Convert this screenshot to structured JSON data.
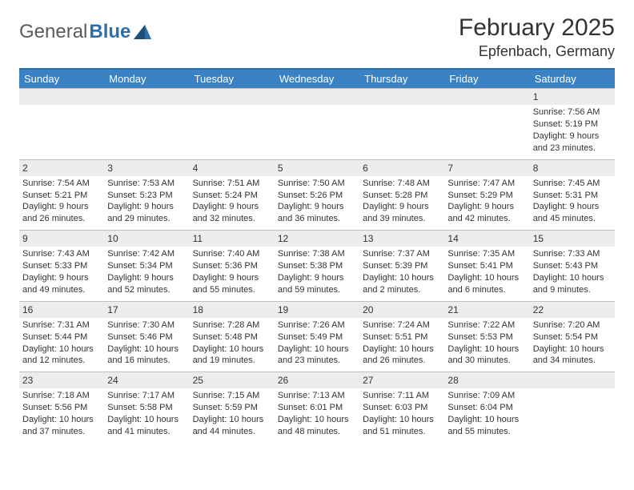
{
  "logo": {
    "text1": "General",
    "text2": "Blue"
  },
  "title": "February 2025",
  "location": "Epfenbach, Germany",
  "colors": {
    "header_bar": "#3a82c4",
    "accent_rule": "#2f6fa7",
    "daynum_bg": "#ededed",
    "text": "#333333",
    "logo_gray": "#5a5a5a",
    "logo_blue": "#2f6fa7"
  },
  "day_names": [
    "Sunday",
    "Monday",
    "Tuesday",
    "Wednesday",
    "Thursday",
    "Friday",
    "Saturday"
  ],
  "weeks": [
    [
      null,
      null,
      null,
      null,
      null,
      null,
      {
        "n": "1",
        "sr": "Sunrise: 7:56 AM",
        "ss": "Sunset: 5:19 PM",
        "d1": "Daylight: 9 hours",
        "d2": "and 23 minutes."
      }
    ],
    [
      {
        "n": "2",
        "sr": "Sunrise: 7:54 AM",
        "ss": "Sunset: 5:21 PM",
        "d1": "Daylight: 9 hours",
        "d2": "and 26 minutes."
      },
      {
        "n": "3",
        "sr": "Sunrise: 7:53 AM",
        "ss": "Sunset: 5:23 PM",
        "d1": "Daylight: 9 hours",
        "d2": "and 29 minutes."
      },
      {
        "n": "4",
        "sr": "Sunrise: 7:51 AM",
        "ss": "Sunset: 5:24 PM",
        "d1": "Daylight: 9 hours",
        "d2": "and 32 minutes."
      },
      {
        "n": "5",
        "sr": "Sunrise: 7:50 AM",
        "ss": "Sunset: 5:26 PM",
        "d1": "Daylight: 9 hours",
        "d2": "and 36 minutes."
      },
      {
        "n": "6",
        "sr": "Sunrise: 7:48 AM",
        "ss": "Sunset: 5:28 PM",
        "d1": "Daylight: 9 hours",
        "d2": "and 39 minutes."
      },
      {
        "n": "7",
        "sr": "Sunrise: 7:47 AM",
        "ss": "Sunset: 5:29 PM",
        "d1": "Daylight: 9 hours",
        "d2": "and 42 minutes."
      },
      {
        "n": "8",
        "sr": "Sunrise: 7:45 AM",
        "ss": "Sunset: 5:31 PM",
        "d1": "Daylight: 9 hours",
        "d2": "and 45 minutes."
      }
    ],
    [
      {
        "n": "9",
        "sr": "Sunrise: 7:43 AM",
        "ss": "Sunset: 5:33 PM",
        "d1": "Daylight: 9 hours",
        "d2": "and 49 minutes."
      },
      {
        "n": "10",
        "sr": "Sunrise: 7:42 AM",
        "ss": "Sunset: 5:34 PM",
        "d1": "Daylight: 9 hours",
        "d2": "and 52 minutes."
      },
      {
        "n": "11",
        "sr": "Sunrise: 7:40 AM",
        "ss": "Sunset: 5:36 PM",
        "d1": "Daylight: 9 hours",
        "d2": "and 55 minutes."
      },
      {
        "n": "12",
        "sr": "Sunrise: 7:38 AM",
        "ss": "Sunset: 5:38 PM",
        "d1": "Daylight: 9 hours",
        "d2": "and 59 minutes."
      },
      {
        "n": "13",
        "sr": "Sunrise: 7:37 AM",
        "ss": "Sunset: 5:39 PM",
        "d1": "Daylight: 10 hours",
        "d2": "and 2 minutes."
      },
      {
        "n": "14",
        "sr": "Sunrise: 7:35 AM",
        "ss": "Sunset: 5:41 PM",
        "d1": "Daylight: 10 hours",
        "d2": "and 6 minutes."
      },
      {
        "n": "15",
        "sr": "Sunrise: 7:33 AM",
        "ss": "Sunset: 5:43 PM",
        "d1": "Daylight: 10 hours",
        "d2": "and 9 minutes."
      }
    ],
    [
      {
        "n": "16",
        "sr": "Sunrise: 7:31 AM",
        "ss": "Sunset: 5:44 PM",
        "d1": "Daylight: 10 hours",
        "d2": "and 12 minutes."
      },
      {
        "n": "17",
        "sr": "Sunrise: 7:30 AM",
        "ss": "Sunset: 5:46 PM",
        "d1": "Daylight: 10 hours",
        "d2": "and 16 minutes."
      },
      {
        "n": "18",
        "sr": "Sunrise: 7:28 AM",
        "ss": "Sunset: 5:48 PM",
        "d1": "Daylight: 10 hours",
        "d2": "and 19 minutes."
      },
      {
        "n": "19",
        "sr": "Sunrise: 7:26 AM",
        "ss": "Sunset: 5:49 PM",
        "d1": "Daylight: 10 hours",
        "d2": "and 23 minutes."
      },
      {
        "n": "20",
        "sr": "Sunrise: 7:24 AM",
        "ss": "Sunset: 5:51 PM",
        "d1": "Daylight: 10 hours",
        "d2": "and 26 minutes."
      },
      {
        "n": "21",
        "sr": "Sunrise: 7:22 AM",
        "ss": "Sunset: 5:53 PM",
        "d1": "Daylight: 10 hours",
        "d2": "and 30 minutes."
      },
      {
        "n": "22",
        "sr": "Sunrise: 7:20 AM",
        "ss": "Sunset: 5:54 PM",
        "d1": "Daylight: 10 hours",
        "d2": "and 34 minutes."
      }
    ],
    [
      {
        "n": "23",
        "sr": "Sunrise: 7:18 AM",
        "ss": "Sunset: 5:56 PM",
        "d1": "Daylight: 10 hours",
        "d2": "and 37 minutes."
      },
      {
        "n": "24",
        "sr": "Sunrise: 7:17 AM",
        "ss": "Sunset: 5:58 PM",
        "d1": "Daylight: 10 hours",
        "d2": "and 41 minutes."
      },
      {
        "n": "25",
        "sr": "Sunrise: 7:15 AM",
        "ss": "Sunset: 5:59 PM",
        "d1": "Daylight: 10 hours",
        "d2": "and 44 minutes."
      },
      {
        "n": "26",
        "sr": "Sunrise: 7:13 AM",
        "ss": "Sunset: 6:01 PM",
        "d1": "Daylight: 10 hours",
        "d2": "and 48 minutes."
      },
      {
        "n": "27",
        "sr": "Sunrise: 7:11 AM",
        "ss": "Sunset: 6:03 PM",
        "d1": "Daylight: 10 hours",
        "d2": "and 51 minutes."
      },
      {
        "n": "28",
        "sr": "Sunrise: 7:09 AM",
        "ss": "Sunset: 6:04 PM",
        "d1": "Daylight: 10 hours",
        "d2": "and 55 minutes."
      },
      null
    ]
  ]
}
